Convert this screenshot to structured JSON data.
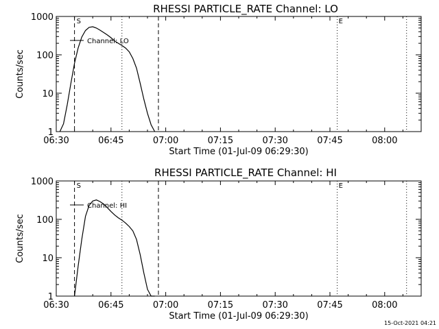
{
  "timestamp": "15-Oct-2021 04:21",
  "chart_data": [
    {
      "type": "line",
      "title": "RHESSI PARTICLE_RATE Channel: LO",
      "xlabel": "Start Time (01-Jul-09 06:29:30)",
      "ylabel": "Counts/sec",
      "y_scale": "log",
      "ylim": [
        1,
        1000
      ],
      "xlim": [
        "06:30",
        "08:10"
      ],
      "x_ticks": [
        "06:30",
        "06:45",
        "07:00",
        "07:15",
        "07:30",
        "07:45",
        "08:00"
      ],
      "y_ticks": [
        "1",
        "10",
        "100",
        "1000"
      ],
      "legend": "Channel: LO",
      "markers": {
        "start": "S",
        "end": "E"
      },
      "dashed_lines": [
        "06:35",
        "06:58"
      ],
      "dotted_lines": [
        "06:48",
        "07:47",
        "08:06"
      ],
      "series": [
        {
          "name": "Channel: LO",
          "x": [
            "06:31",
            "06:32",
            "06:33",
            "06:34",
            "06:35",
            "06:36",
            "06:37",
            "06:38",
            "06:39",
            "06:40",
            "06:41",
            "06:42",
            "06:43",
            "06:44",
            "06:45",
            "06:46",
            "06:47",
            "06:48",
            "06:49",
            "06:50",
            "06:51",
            "06:52",
            "06:53",
            "06:54",
            "06:55",
            "06:56",
            "06:57"
          ],
          "y": [
            1,
            1.6,
            5,
            18,
            60,
            150,
            290,
            430,
            520,
            540,
            500,
            440,
            380,
            330,
            280,
            230,
            200,
            175,
            150,
            120,
            80,
            45,
            18,
            7,
            3,
            1.5,
            1
          ]
        }
      ]
    },
    {
      "type": "line",
      "title": "RHESSI PARTICLE_RATE Channel: HI",
      "xlabel": "Start Time (01-Jul-09 06:29:30)",
      "ylabel": "Counts/sec",
      "y_scale": "log",
      "ylim": [
        1,
        1000
      ],
      "xlim": [
        "06:30",
        "08:10"
      ],
      "x_ticks": [
        "06:30",
        "06:45",
        "07:00",
        "07:15",
        "07:30",
        "07:45",
        "08:00"
      ],
      "y_ticks": [
        "1",
        "10",
        "100",
        "1000"
      ],
      "legend": "Channel: HI",
      "markers": {
        "start": "S",
        "end": "E"
      },
      "dashed_lines": [
        "06:35",
        "06:58"
      ],
      "dotted_lines": [
        "06:48",
        "07:47",
        "08:06"
      ],
      "series": [
        {
          "name": "Channel: HI",
          "x": [
            "06:35",
            "06:36",
            "06:37",
            "06:38",
            "06:39",
            "06:40",
            "06:41",
            "06:42",
            "06:43",
            "06:44",
            "06:45",
            "06:46",
            "06:47",
            "06:48",
            "06:49",
            "06:50",
            "06:51",
            "06:52",
            "06:53",
            "06:54",
            "06:55",
            "06:56",
            "06:57"
          ],
          "y": [
            1,
            6,
            30,
            120,
            230,
            300,
            320,
            290,
            250,
            200,
            160,
            130,
            110,
            95,
            80,
            65,
            50,
            30,
            12,
            4,
            1.5,
            1,
            1
          ]
        }
      ]
    }
  ]
}
